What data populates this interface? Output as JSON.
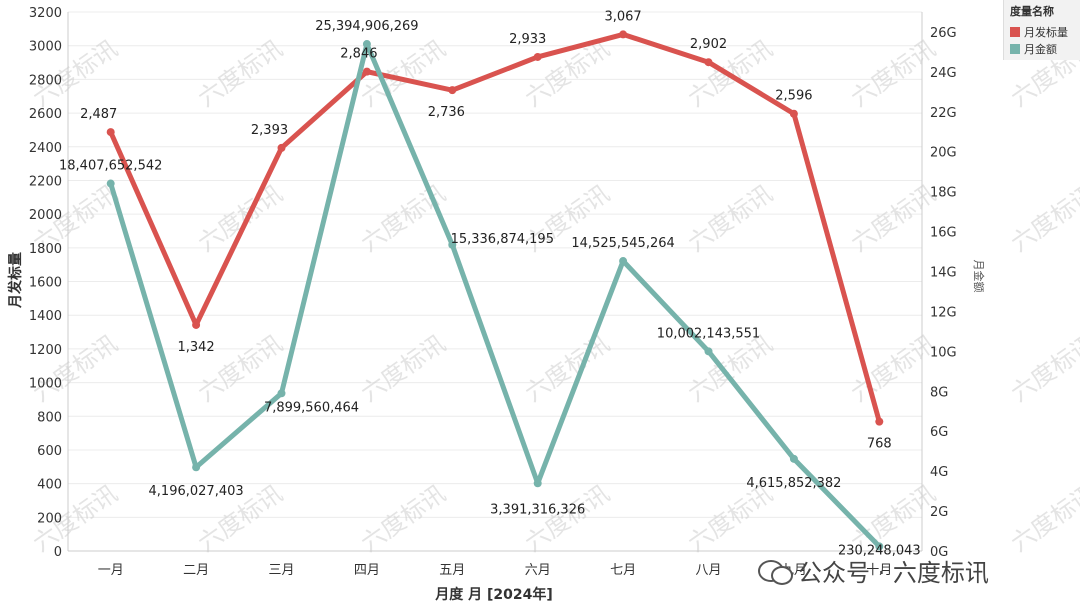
{
  "chart_data": {
    "type": "line",
    "categories": [
      "一月",
      "二月",
      "三月",
      "四月",
      "五月",
      "六月",
      "七月",
      "八月",
      "九月",
      "十月"
    ],
    "xlabel": "月度 月 [2024年]",
    "ylabel_left": "月发标量",
    "ylabel_right": "月金额",
    "left_axis": {
      "ylim": [
        0,
        3200
      ],
      "ticks": [
        "0",
        "200",
        "400",
        "600",
        "800",
        "1000",
        "1200",
        "1400",
        "1600",
        "1800",
        "2000",
        "2200",
        "2400",
        "2600",
        "2800",
        "3000",
        "3200"
      ]
    },
    "right_axis": {
      "ylim": [
        0,
        27000000000
      ],
      "ticks": [
        "0G",
        "2G",
        "4G",
        "6G",
        "8G",
        "10G",
        "12G",
        "14G",
        "16G",
        "18G",
        "20G",
        "22G",
        "24G",
        "26G"
      ]
    },
    "series": [
      {
        "name": "月发标量",
        "axis": "left",
        "color": "#d9534f",
        "values": [
          2487,
          1342,
          2393,
          2846,
          2736,
          2933,
          3067,
          2902,
          2596,
          768
        ],
        "labels": [
          "2,487",
          "1,342",
          "2,393",
          "2,846",
          "2,736",
          "2,933",
          "3,067",
          "2,902",
          "2,596",
          "768"
        ]
      },
      {
        "name": "月金额",
        "axis": "right",
        "color": "#76b3ab",
        "values": [
          18407652542,
          4196027403,
          7899560464,
          25394906269,
          15336874195,
          3391316326,
          14525545264,
          10002143551,
          4615852382,
          230248043
        ],
        "labels": [
          "18,407,652,542",
          "4,196,027,403",
          "7,899,560,464",
          "25,394,906,269",
          "15,336,874,195",
          "3,391,316,326",
          "14,525,545,264",
          "10,002,143,551",
          "4,615,852,382",
          "230,248,043"
        ]
      }
    ],
    "grid": true,
    "legend": {
      "title": "度量名称",
      "placement": "top-right"
    }
  },
  "watermark": {
    "text": "六度标讯"
  },
  "footer_watermark": {
    "text": "公众号 · 六度标讯",
    "icon": "wechat-icon"
  }
}
